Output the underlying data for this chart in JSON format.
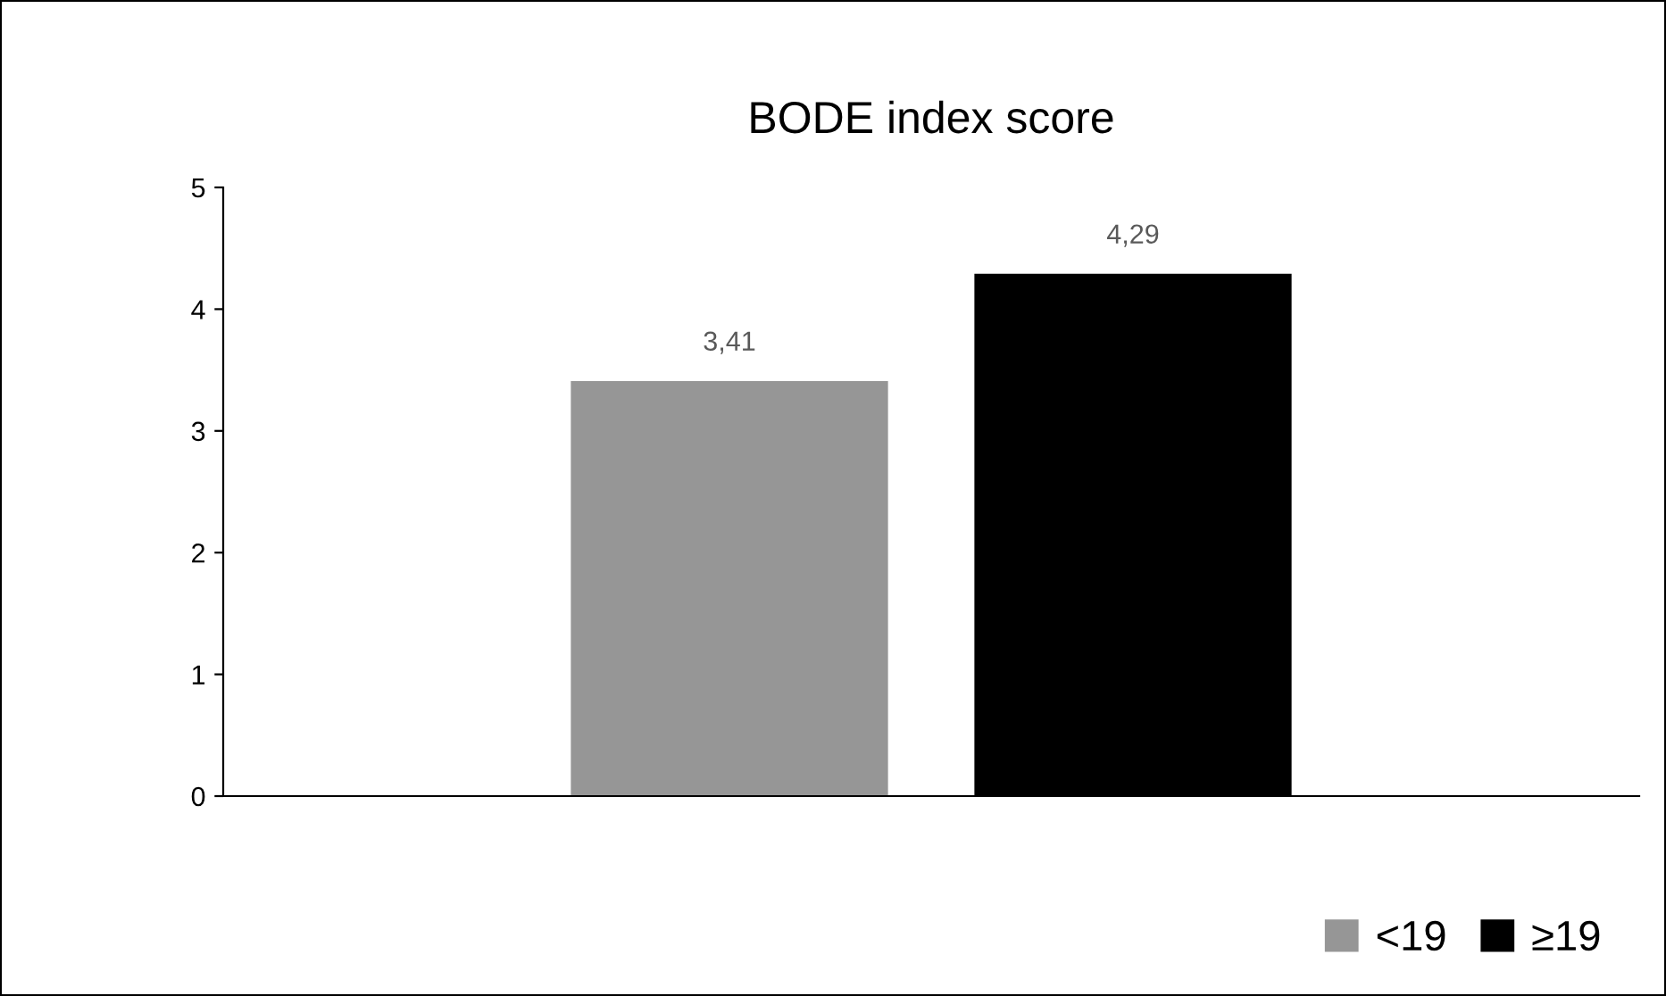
{
  "chart_data": {
    "type": "bar",
    "title": "BODE index score",
    "categories": [
      null
    ],
    "series": [
      {
        "name": "<19",
        "color": "#969696",
        "values": [
          3.41
        ],
        "value_labels": [
          "3,41"
        ]
      },
      {
        "name": "≥19",
        "color": "#000000",
        "values": [
          4.29
        ],
        "value_labels": [
          "4,29"
        ]
      }
    ],
    "ylim": [
      0,
      5
    ],
    "yticks": [
      0,
      1,
      2,
      3,
      4,
      5
    ],
    "grid": false,
    "legend": "bottom right"
  }
}
